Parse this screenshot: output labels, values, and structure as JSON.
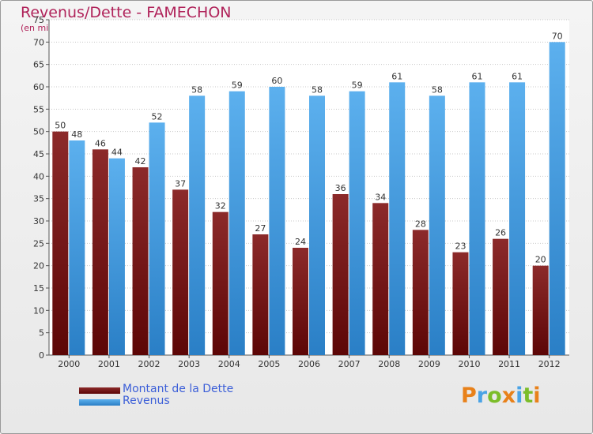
{
  "header": {
    "title": "Revenus/Dette - FAMECHON",
    "subtitle": "(en milliers d'€)"
  },
  "colors": {
    "dette": "#7a1414",
    "revenus": "#4aa3e6",
    "title": "#b0235a",
    "legend_text": "#3c5fd8"
  },
  "legend": {
    "dette_label": "Montant de la Dette",
    "revenus_label": "Revenus"
  },
  "logo": {
    "text": "Proxiti"
  },
  "chart_data": {
    "type": "bar",
    "categories": [
      "2000",
      "2001",
      "2002",
      "2003",
      "2004",
      "2005",
      "2006",
      "2007",
      "2008",
      "2009",
      "2010",
      "2011",
      "2012"
    ],
    "series": [
      {
        "name": "Montant de la Dette",
        "values": [
          50,
          46,
          42,
          37,
          32,
          27,
          24,
          36,
          34,
          28,
          23,
          26,
          20
        ]
      },
      {
        "name": "Revenus",
        "values": [
          48,
          44,
          52,
          58,
          59,
          60,
          58,
          59,
          61,
          58,
          61,
          61,
          70
        ]
      }
    ],
    "ylim": [
      0,
      75
    ],
    "yticks": [
      0,
      5,
      10,
      15,
      20,
      25,
      30,
      35,
      40,
      45,
      50,
      55,
      60,
      65,
      70,
      75
    ],
    "grid": true,
    "legend_position": "bottom-left"
  }
}
